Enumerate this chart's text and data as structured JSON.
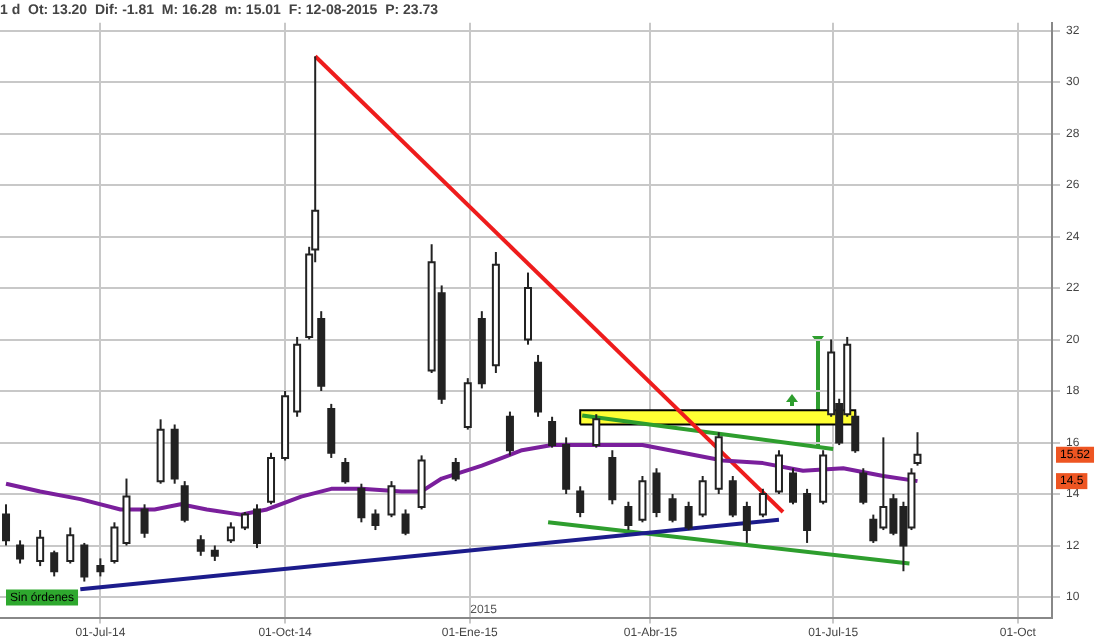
{
  "chart_data": {
    "type": "candlestick",
    "title": "1 d  Ot: 13.20  Dif: -1.81  M: 16.28  m: 15.01  F: 12-08-2015  P: 23.73",
    "x": [
      "2014-05-15",
      "2014-05-22",
      "2014-06-01",
      "2014-06-08",
      "2014-06-16",
      "2014-06-23",
      "2014-07-01",
      "2014-07-08",
      "2014-07-14",
      "2014-07-23",
      "2014-07-31",
      "2014-08-07",
      "2014-08-12",
      "2014-08-20",
      "2014-08-27",
      "2014-09-04",
      "2014-09-11",
      "2014-09-17",
      "2014-09-24",
      "2014-10-01",
      "2014-10-07",
      "2014-10-13",
      "2014-10-16",
      "2014-10-19",
      "2014-10-24",
      "2014-10-31",
      "2014-11-08",
      "2014-11-15",
      "2014-11-23",
      "2014-11-30",
      "2014-12-08",
      "2014-12-13",
      "2014-12-18",
      "2014-12-25",
      "2014-12-31",
      "2015-01-07",
      "2015-01-14",
      "2015-01-21",
      "2015-01-30",
      "2015-02-04",
      "2015-02-11",
      "2015-02-18",
      "2015-02-25",
      "2015-03-05",
      "2015-03-13",
      "2015-03-21",
      "2015-03-28",
      "2015-04-04",
      "2015-04-12",
      "2015-04-20",
      "2015-04-27",
      "2015-05-05",
      "2015-05-12",
      "2015-05-19",
      "2015-05-27",
      "2015-06-04",
      "2015-06-11",
      "2015-06-18",
      "2015-06-26",
      "2015-06-30",
      "2015-07-04",
      "2015-07-08",
      "2015-07-12",
      "2015-07-16",
      "2015-07-21",
      "2015-07-26",
      "2015-07-31",
      "2015-08-05",
      "2015-08-09",
      "2015-08-12"
    ],
    "ohlc": [
      [
        13.2,
        13.6,
        12.0,
        12.2
      ],
      [
        12.0,
        12.2,
        11.3,
        11.5
      ],
      [
        11.4,
        12.6,
        11.2,
        12.3
      ],
      [
        11.7,
        11.8,
        10.8,
        11.0
      ],
      [
        11.4,
        12.7,
        11.3,
        12.4
      ],
      [
        12.0,
        12.1,
        10.6,
        10.8
      ],
      [
        11.2,
        11.5,
        10.8,
        11.0
      ],
      [
        11.4,
        12.9,
        11.3,
        12.7
      ],
      [
        12.1,
        14.6,
        12.0,
        13.9
      ],
      [
        13.4,
        13.6,
        12.3,
        12.5
      ],
      [
        14.5,
        16.9,
        14.4,
        16.5
      ],
      [
        16.5,
        16.7,
        14.4,
        14.6
      ],
      [
        14.3,
        14.5,
        12.9,
        13.0
      ],
      [
        12.2,
        12.4,
        11.6,
        11.8
      ],
      [
        11.8,
        12.0,
        11.4,
        11.6
      ],
      [
        12.2,
        12.9,
        12.1,
        12.7
      ],
      [
        12.7,
        13.3,
        12.6,
        13.2
      ],
      [
        13.4,
        13.6,
        11.9,
        12.1
      ],
      [
        13.7,
        15.6,
        13.6,
        15.4
      ],
      [
        15.4,
        18.0,
        15.3,
        17.8
      ],
      [
        17.2,
        20.1,
        17.0,
        19.8
      ],
      [
        20.1,
        23.6,
        20.0,
        23.3
      ],
      [
        23.5,
        31.0,
        23.0,
        25.0
      ],
      [
        20.8,
        21.1,
        18.0,
        18.2
      ],
      [
        17.3,
        17.5,
        15.4,
        15.6
      ],
      [
        15.2,
        15.4,
        14.4,
        14.5
      ],
      [
        14.2,
        14.4,
        12.9,
        13.1
      ],
      [
        13.2,
        13.4,
        12.6,
        12.8
      ],
      [
        13.2,
        14.5,
        13.1,
        14.3
      ],
      [
        13.2,
        13.4,
        12.4,
        12.5
      ],
      [
        13.5,
        15.5,
        13.4,
        15.3
      ],
      [
        18.8,
        23.7,
        18.7,
        23.0
      ],
      [
        21.8,
        22.1,
        17.5,
        17.7
      ],
      [
        15.2,
        15.4,
        14.5,
        14.6
      ],
      [
        16.6,
        18.5,
        16.5,
        18.3
      ],
      [
        20.8,
        21.1,
        18.1,
        18.3
      ],
      [
        19.0,
        23.4,
        18.7,
        22.9
      ],
      [
        17.0,
        17.2,
        15.5,
        15.7
      ],
      [
        20.0,
        22.6,
        19.8,
        22.0
      ],
      [
        19.1,
        19.4,
        17.0,
        17.2
      ],
      [
        16.8,
        17.0,
        15.8,
        15.9
      ],
      [
        15.9,
        16.2,
        14.0,
        14.2
      ],
      [
        14.1,
        14.3,
        13.1,
        13.3
      ],
      [
        15.9,
        17.1,
        15.8,
        16.9
      ],
      [
        15.4,
        15.7,
        13.6,
        13.8
      ],
      [
        13.5,
        13.7,
        12.6,
        12.8
      ],
      [
        13.0,
        14.7,
        12.9,
        14.5
      ],
      [
        14.8,
        15.0,
        13.1,
        13.3
      ],
      [
        13.8,
        14.0,
        12.9,
        13.0
      ],
      [
        13.5,
        13.7,
        12.6,
        12.7
      ],
      [
        13.2,
        14.7,
        13.1,
        14.5
      ],
      [
        14.2,
        16.4,
        14.0,
        16.2
      ],
      [
        14.5,
        14.7,
        13.1,
        13.2
      ],
      [
        13.5,
        13.7,
        12.1,
        12.6
      ],
      [
        13.2,
        14.2,
        13.1,
        14.0
      ],
      [
        14.1,
        15.7,
        14.0,
        15.5
      ],
      [
        14.8,
        15.0,
        13.6,
        13.7
      ],
      [
        14.0,
        14.2,
        12.1,
        12.6
      ],
      [
        13.7,
        15.7,
        13.6,
        15.5
      ],
      [
        17.1,
        20.0,
        17.0,
        19.5
      ],
      [
        17.5,
        17.7,
        15.9,
        16.0
      ],
      [
        17.1,
        20.1,
        17.0,
        19.8
      ],
      [
        17.0,
        17.2,
        15.6,
        15.7
      ],
      [
        14.8,
        15.0,
        13.6,
        13.7
      ],
      [
        13.0,
        13.2,
        12.1,
        12.2
      ],
      [
        12.7,
        16.2,
        12.6,
        13.5
      ],
      [
        13.8,
        14.0,
        12.4,
        12.5
      ],
      [
        13.5,
        13.7,
        11.0,
        12.0
      ],
      [
        12.7,
        15.0,
        12.6,
        14.8
      ],
      [
        15.2,
        16.4,
        15.1,
        15.52
      ]
    ],
    "series": [
      {
        "type": "line",
        "color": "#7a1f9c",
        "x": [
          "2014-05-15",
          "2014-06-01",
          "2014-06-21",
          "2014-07-11",
          "2014-07-28",
          "2014-08-10",
          "2014-08-23",
          "2014-09-09",
          "2014-09-22",
          "2014-10-09",
          "2014-10-24",
          "2014-11-08",
          "2014-11-28",
          "2014-12-08",
          "2014-12-18",
          "2015-01-07",
          "2015-01-27",
          "2015-02-11",
          "2015-02-26",
          "2015-03-28",
          "2015-04-17",
          "2015-05-07",
          "2015-05-27",
          "2015-06-16",
          "2015-07-06",
          "2015-07-26",
          "2015-08-12"
        ],
        "values": [
          14.4,
          14.1,
          13.8,
          13.4,
          13.4,
          13.6,
          13.4,
          13.2,
          13.4,
          13.9,
          14.2,
          14.2,
          14.1,
          14.1,
          14.6,
          15.1,
          15.7,
          15.9,
          15.9,
          15.9,
          15.6,
          15.3,
          15.2,
          14.9,
          15.0,
          14.7,
          14.5
        ]
      },
      {
        "type": "line",
        "color": "#ee1c1c",
        "x": [
          "2014-10-16",
          "2015-06-06"
        ],
        "values": [
          31.0,
          13.3
        ]
      },
      {
        "type": "line",
        "color": "#1c1c8c",
        "x": [
          "2014-06-21",
          "2015-06-04"
        ],
        "values": [
          10.3,
          13.0
        ]
      },
      {
        "type": "line",
        "color": "#2e9e2e",
        "x": [
          "2015-02-09",
          "2015-08-08"
        ],
        "values": [
          12.9,
          11.3
        ]
      },
      {
        "type": "line",
        "color": "#2e9e2e",
        "x": [
          "2015-02-26",
          "2015-07-01"
        ],
        "values": [
          17.05,
          15.75
        ]
      },
      {
        "type": "area",
        "color": "#ffff33",
        "x": [
          "2015-02-25",
          "2015-02-25",
          "2015-07-12",
          "2015-07-12",
          "2015-02-25"
        ],
        "values": [
          16.7,
          17.25,
          17.25,
          16.7,
          16.7
        ]
      }
    ],
    "xlim": [
      "2014-05-12",
      "2015-10-18"
    ],
    "xticks": [
      {
        "value": "2014-07-01",
        "label": "01-Jul-14"
      },
      {
        "value": "2014-10-01",
        "label": "01-Oct-14"
      },
      {
        "value": "2015-01-01",
        "label": "01-Ene-15"
      },
      {
        "value": "2015-04-01",
        "label": "01-Abr-15"
      },
      {
        "value": "2015-07-01",
        "label": "01-Jul-15"
      },
      {
        "value": "2015-10-01",
        "label": "01-Oct"
      }
    ],
    "ylim": [
      9.2,
      32.3
    ],
    "yticks": [
      10,
      12,
      14,
      16,
      18,
      20,
      22,
      24,
      26,
      28,
      30,
      32
    ],
    "grid": true,
    "annotations": [
      {
        "text": "15.52",
        "y": 15.52
      },
      {
        "text": "14.5",
        "y": 14.5
      },
      "2015",
      "Sin órdenes"
    ]
  }
}
